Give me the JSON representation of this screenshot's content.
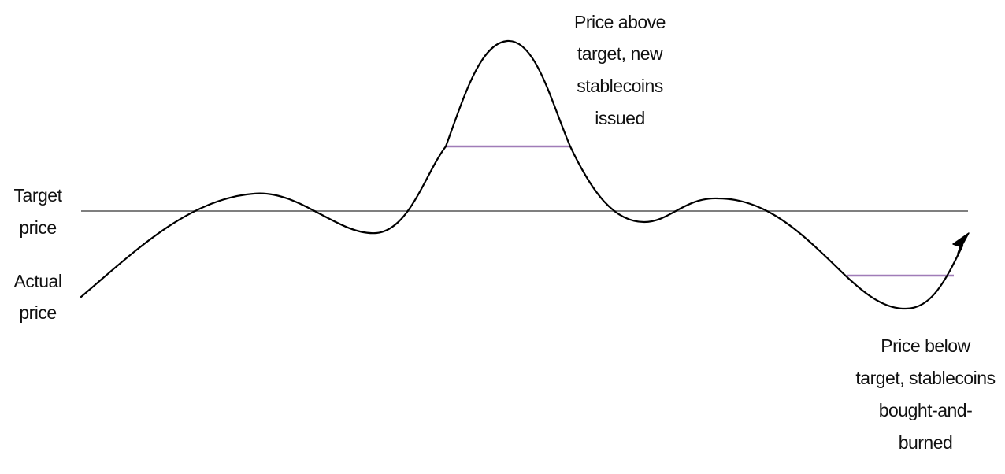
{
  "labels": {
    "target_price": [
      "Target",
      "price"
    ],
    "actual_price": [
      "Actual",
      "price"
    ],
    "above_note": [
      "Price above",
      "target, new",
      "stablecoins",
      "issued"
    ],
    "below_note": [
      "Price below",
      "target, stablecoins",
      "bought-and-",
      "burned"
    ]
  },
  "colors": {
    "curve": "#000000",
    "target_line": "#7f7f7f",
    "band": "#a07cb8",
    "text": "#111111"
  },
  "icons": {
    "curve_end": "arrow-head-icon"
  }
}
